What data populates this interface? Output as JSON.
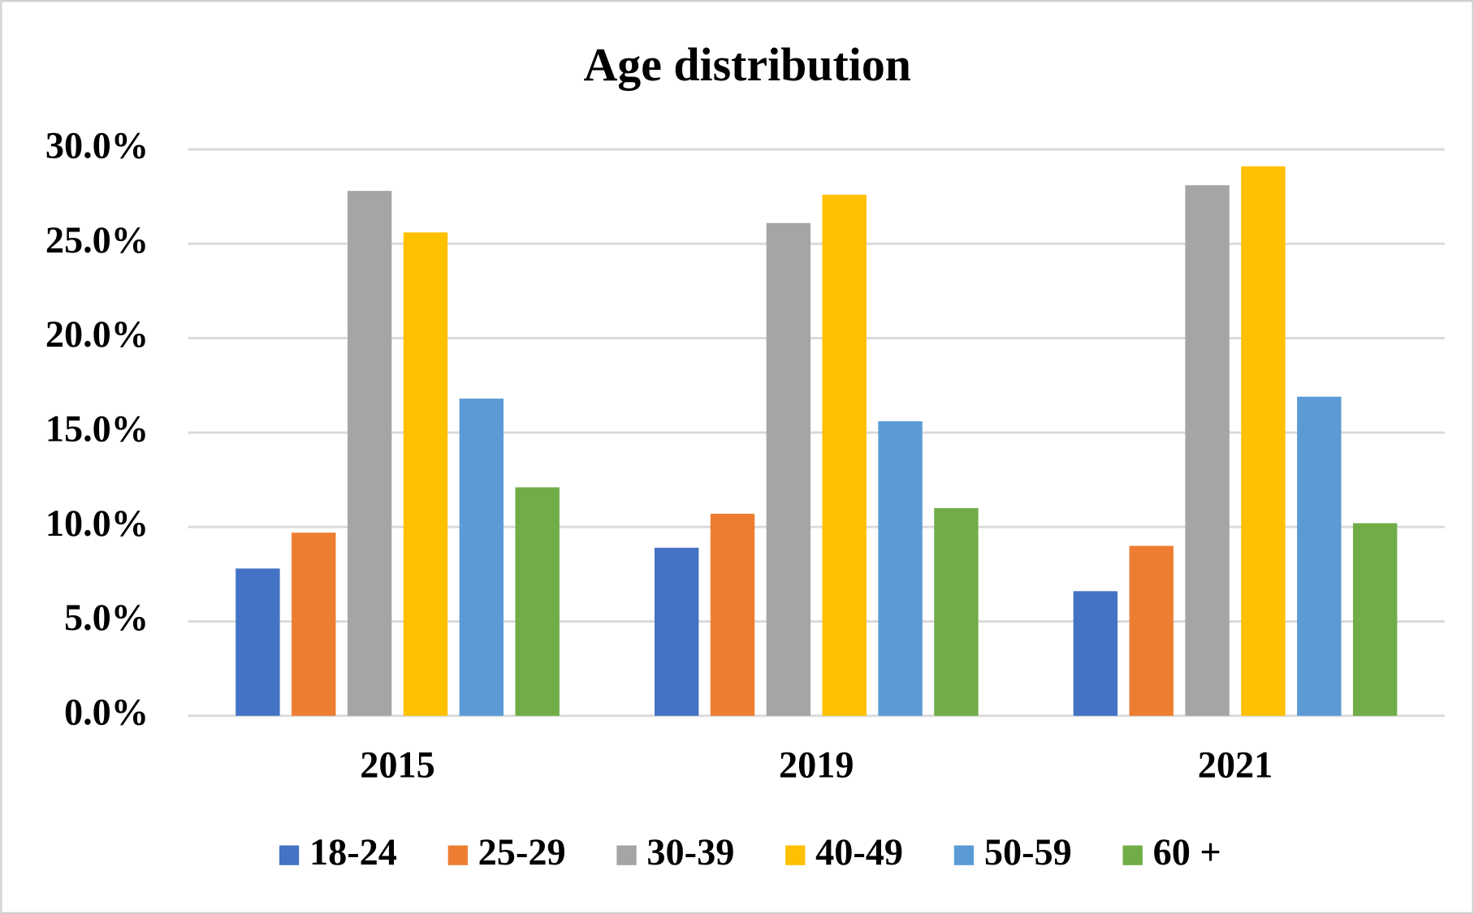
{
  "chart_data": {
    "type": "bar",
    "title": "Age distribution",
    "categories": [
      "2015",
      "2019",
      "2021"
    ],
    "series": [
      {
        "name": "18-24",
        "color": "#4472c4",
        "values": [
          7.8,
          8.9,
          6.6
        ]
      },
      {
        "name": "25-29",
        "color": "#ed7d31",
        "values": [
          9.7,
          10.7,
          9.0
        ]
      },
      {
        "name": "30-39",
        "color": "#a5a5a5",
        "values": [
          27.8,
          26.1,
          28.1
        ]
      },
      {
        "name": "40-49",
        "color": "#ffc000",
        "values": [
          25.6,
          27.6,
          29.1
        ]
      },
      {
        "name": "50-59",
        "color": "#5b9bd5",
        "values": [
          16.8,
          15.6,
          16.9
        ]
      },
      {
        "name": "60 +",
        "color": "#70ad47",
        "values": [
          12.1,
          11.0,
          10.2
        ]
      }
    ],
    "ylim": [
      0,
      30
    ],
    "yticks": [
      {
        "value": 0,
        "label": "0.0%"
      },
      {
        "value": 5,
        "label": "5.0%"
      },
      {
        "value": 10,
        "label": "10.0%"
      },
      {
        "value": 15,
        "label": "15.0%"
      },
      {
        "value": 20,
        "label": "20.0%"
      },
      {
        "value": 25,
        "label": "25.0%"
      },
      {
        "value": 30,
        "label": "30.0%"
      }
    ],
    "grid": true,
    "legend": "bottom"
  }
}
